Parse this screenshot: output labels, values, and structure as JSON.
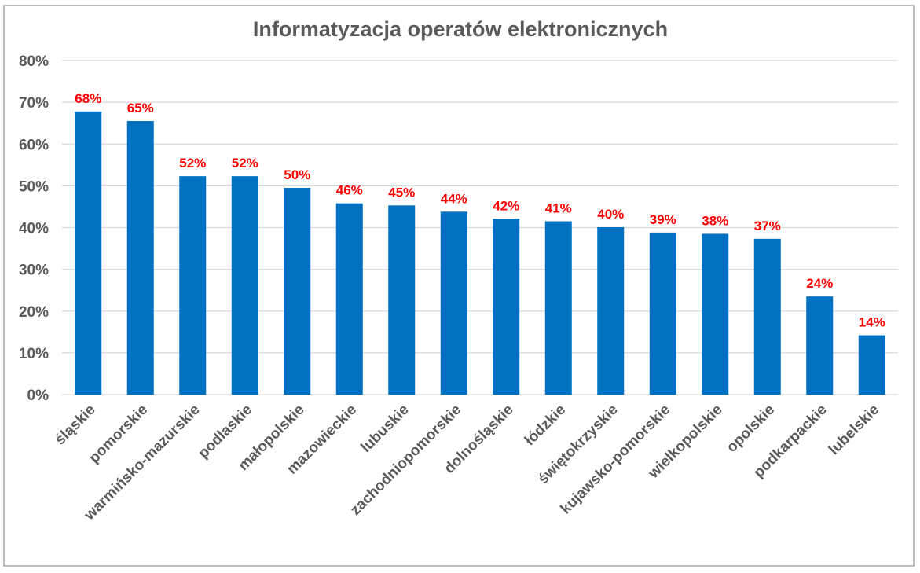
{
  "chart_data": {
    "type": "bar",
    "title": "Informatyzacja operatów elektronicznych",
    "xlabel": "",
    "ylabel": "",
    "ylim": [
      0,
      80
    ],
    "yticks": [
      "0%",
      "10%",
      "20%",
      "30%",
      "40%",
      "50%",
      "60%",
      "70%",
      "80%"
    ],
    "grid": true,
    "legend": "none",
    "bar_color": "#0070c0",
    "label_color": "#ff0000",
    "categories": [
      "śląskie",
      "pomorskie",
      "warmińsko-mazurskie",
      "podlaskie",
      "małopolskie",
      "mazowieckie",
      "lubuskie",
      "zachodniopomorskie",
      "dolnośląskie",
      "łódzkie",
      "świętokrzyskie",
      "kujawsko-pomorskie",
      "wielkopolskie",
      "opolskie",
      "podkarpackie",
      "lubelskie"
    ],
    "values": [
      67.8,
      65.5,
      52.3,
      52.3,
      49.5,
      45.8,
      45.3,
      43.8,
      42.1,
      41.5,
      40.1,
      38.8,
      38.5,
      37.3,
      23.5,
      14.2
    ],
    "data_labels": [
      "68%",
      "65%",
      "52%",
      "52%",
      "50%",
      "46%",
      "45%",
      "44%",
      "42%",
      "41%",
      "40%",
      "39%",
      "38%",
      "37%",
      "24%",
      "14%"
    ]
  }
}
